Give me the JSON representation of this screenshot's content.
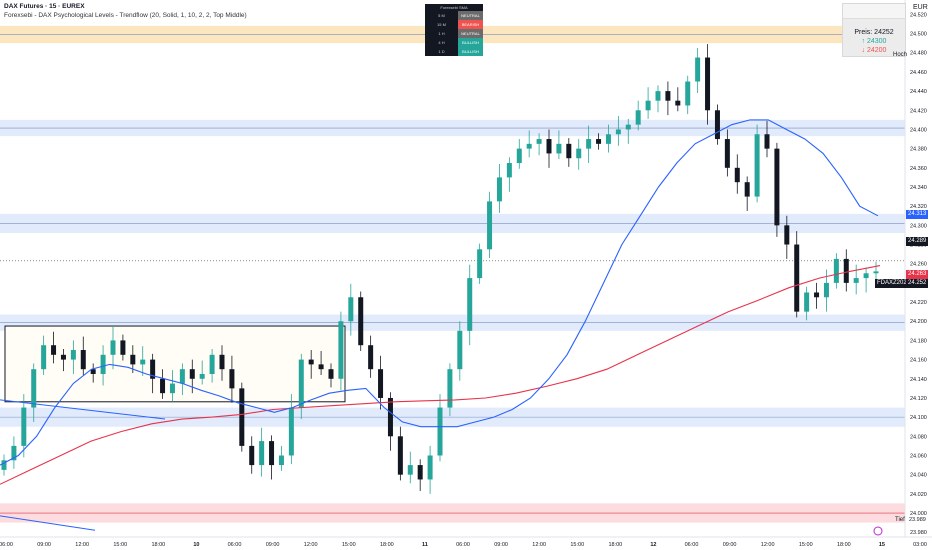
{
  "header": {
    "title": "DAX Futures · 15 · EUREX",
    "indicator": "Forexsebi - DAX Psychological Levels - Trendflow (20, Solid, 1, 10, 2, 2, Top Middle)"
  },
  "sma_table": {
    "title": "Forexsebi SMA",
    "rows": [
      {
        "tf": "5 M",
        "status": "NEUTRAL",
        "color": "#6b6b6b"
      },
      {
        "tf": "15 M",
        "status": "BEARISH",
        "color": "#ef5350"
      },
      {
        "tf": "1 H",
        "status": "NEUTRAL",
        "color": "#6b6b6b"
      },
      {
        "tf": "4 H",
        "status": "BULLISH",
        "color": "#26a69a"
      },
      {
        "tf": "1 D",
        "status": "BULLISH",
        "color": "#26a69a"
      }
    ]
  },
  "price_widget": {
    "preis": "Preis: 24252",
    "up": "↑ 24300",
    "down": "↓ 24200"
  },
  "currency": "EUR",
  "labels": {
    "hoch": "Hoch",
    "tief": "Tief",
    "tief_value": "23.989",
    "symbol": "FDAXZ2025",
    "price_313": "24.313",
    "price_289": "24.289",
    "price_263": "24.263",
    "price_252": "24.252"
  },
  "colors": {
    "up": "#26a69a",
    "down": "#131722",
    "sma_blue": "#2962ff",
    "sma_red": "#e8334a",
    "zone_blue": "#dbe6fb",
    "zone_orange": "#fbe0b0",
    "zone_red": "#fbd3d6"
  },
  "chart_data": {
    "type": "candlestick",
    "symbol": "FDAXZ2025",
    "y_ticks": [
      "24.520",
      "24.500",
      "24.480",
      "24.460",
      "24.440",
      "24.420",
      "24.400",
      "24.380",
      "24.360",
      "24.340",
      "24.320",
      "24.300",
      "24.280",
      "24.260",
      "24.240",
      "24.220",
      "24.200",
      "24.180",
      "24.160",
      "24.140",
      "24.120",
      "24.100",
      "24.080",
      "24.060",
      "24.040",
      "24.020",
      "24.000",
      "23.980"
    ],
    "ylim": [
      23975,
      24535
    ],
    "x_ticks": [
      "06:00",
      "09:00",
      "12:00",
      "15:00",
      "18:00",
      "10",
      "06:00",
      "09:00",
      "12:00",
      "15:00",
      "18:00",
      "11",
      "06:00",
      "09:00",
      "12:00",
      "15:00",
      "18:00",
      "12",
      "06:00",
      "09:00",
      "12:00",
      "15:00",
      "18:00",
      "15",
      "03:00"
    ],
    "zones": [
      {
        "type": "resistance",
        "from": 24490,
        "to": 24508
      },
      {
        "type": "psych",
        "from": 24393,
        "to": 24410
      },
      {
        "type": "psych",
        "from": 24292,
        "to": 24312
      },
      {
        "type": "psych",
        "from": 24190,
        "to": 24207
      },
      {
        "type": "psych",
        "from": 24090,
        "to": 24110
      },
      {
        "type": "support",
        "from": 23990,
        "to": 24010
      }
    ],
    "close_series": [
      24055,
      24070,
      24110,
      24150,
      24175,
      24165,
      24160,
      24170,
      24150,
      24145,
      24165,
      24180,
      24165,
      24155,
      24160,
      24140,
      24125,
      24135,
      24150,
      24140,
      24145,
      24165,
      24150,
      24130,
      24070,
      24050,
      24075,
      24050,
      24060,
      24110,
      24160,
      24155,
      24150,
      24140,
      24200,
      24225,
      24175,
      24150,
      24120,
      24080,
      24040,
      24050,
      24035,
      24060,
      24110,
      24150,
      24190,
      24245,
      24275,
      24325,
      24350,
      24365,
      24380,
      24385,
      24390,
      24375,
      24385,
      24370,
      24380,
      24390,
      24385,
      24395,
      24400,
      24405,
      24420,
      24430,
      24440,
      24430,
      24425,
      24450,
      24475,
      24420,
      24390,
      24360,
      24345,
      24330,
      24395,
      24380,
      24300,
      24280,
      24210,
      24230,
      24225,
      24240,
      24265,
      24240,
      24245,
      24250,
      24252
    ],
    "sma_blue": [
      24050,
      24060,
      24080,
      24110,
      24135,
      24150,
      24155,
      24152,
      24145,
      24140,
      24135,
      24128,
      24122,
      24115,
      24110,
      24105,
      24110,
      24118,
      24125,
      24128,
      24130,
      24110,
      24095,
      24090,
      24090,
      24090,
      24095,
      24100,
      24108,
      24120,
      24140,
      24165,
      24200,
      24240,
      24280,
      24310,
      24340,
      24365,
      24385,
      24395,
      24405,
      24410,
      24410,
      24400,
      24390,
      24375,
      24350,
      24320,
      24310
    ],
    "sma_red": [
      24030,
      24045,
      24060,
      24075,
      24085,
      24093,
      24098,
      24100,
      24103,
      24108,
      24110,
      24112,
      24114,
      24116,
      24117,
      24118,
      24120,
      24125,
      24132,
      24140,
      24150,
      24165,
      24180,
      24195,
      24210,
      24222,
      24235,
      24245,
      24252,
      24258
    ]
  }
}
